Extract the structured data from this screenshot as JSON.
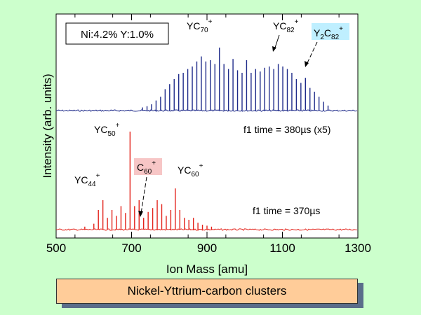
{
  "chart_data": {
    "type": "line",
    "xlabel": "Ion Mass [amu]",
    "ylabel": "Intensity (arb. units)",
    "xlim": [
      500,
      1300
    ],
    "x_ticks": [
      500,
      700,
      900,
      1100,
      1300
    ],
    "legend_box": "Ni:4.2% Y:1.0%",
    "series": [
      {
        "id": "blue",
        "color": "#1f2b8a",
        "annotation": "f1 time = 380µs (x5)",
        "peaks": [
          [
            729,
            0.05
          ],
          [
            741,
            0.07
          ],
          [
            753,
            0.1
          ],
          [
            765,
            0.16
          ],
          [
            777,
            0.22
          ],
          [
            789,
            0.34
          ],
          [
            801,
            0.42
          ],
          [
            813,
            0.5
          ],
          [
            825,
            0.58
          ],
          [
            837,
            0.6
          ],
          [
            849,
            0.66
          ],
          [
            861,
            0.7
          ],
          [
            873,
            0.78
          ],
          [
            885,
            0.86
          ],
          [
            897,
            0.78
          ],
          [
            909,
            0.8
          ],
          [
            921,
            0.74
          ],
          [
            933,
            1.0
          ],
          [
            945,
            0.74
          ],
          [
            957,
            0.66
          ],
          [
            969,
            0.82
          ],
          [
            981,
            0.64
          ],
          [
            993,
            0.6
          ],
          [
            1005,
            0.8
          ],
          [
            1017,
            0.6
          ],
          [
            1029,
            0.66
          ],
          [
            1041,
            0.62
          ],
          [
            1053,
            0.68
          ],
          [
            1065,
            0.7
          ],
          [
            1077,
            0.66
          ],
          [
            1089,
            0.74
          ],
          [
            1101,
            0.7
          ],
          [
            1113,
            0.66
          ],
          [
            1125,
            0.6
          ],
          [
            1137,
            0.5
          ],
          [
            1149,
            0.44
          ],
          [
            1161,
            0.52
          ],
          [
            1173,
            0.36
          ],
          [
            1185,
            0.3
          ],
          [
            1197,
            0.22
          ],
          [
            1209,
            0.14
          ],
          [
            1221,
            0.08
          ]
        ]
      },
      {
        "id": "red",
        "color": "#e3231b",
        "annotation": "f1 time = 370µs",
        "peaks": [
          [
            576,
            0.03
          ],
          [
            600,
            0.06
          ],
          [
            612,
            0.2
          ],
          [
            624,
            0.3
          ],
          [
            636,
            0.12
          ],
          [
            648,
            0.2
          ],
          [
            660,
            0.14
          ],
          [
            672,
            0.24
          ],
          [
            684,
            0.17
          ],
          [
            696,
            1.0
          ],
          [
            708,
            0.24
          ],
          [
            720,
            0.3
          ],
          [
            732,
            0.12
          ],
          [
            744,
            0.18
          ],
          [
            756,
            0.22
          ],
          [
            768,
            0.3
          ],
          [
            780,
            0.26
          ],
          [
            792,
            0.14
          ],
          [
            804,
            0.2
          ],
          [
            816,
            0.42
          ],
          [
            828,
            0.2
          ],
          [
            840,
            0.12
          ],
          [
            852,
            0.1
          ],
          [
            864,
            0.12
          ],
          [
            876,
            0.07
          ],
          [
            888,
            0.05
          ],
          [
            900,
            0.04
          ],
          [
            912,
            0.03
          ]
        ]
      }
    ],
    "annotations": [
      {
        "label": "YC",
        "sub": "70",
        "sup": "+"
      },
      {
        "label": "YC",
        "sub": "82",
        "sup": "+"
      },
      {
        "label": "Y",
        "mid": "2",
        "label2": "C",
        "sub": "82",
        "sup": "+"
      },
      {
        "label": "YC",
        "sub": "50",
        "sup": "+"
      },
      {
        "label": "C",
        "sub": "60",
        "sup": "+"
      },
      {
        "label": "YC",
        "sub": "44",
        "sup": "+"
      },
      {
        "label": "YC",
        "sub": "60",
        "sup": "+"
      }
    ]
  },
  "caption": "Nickel-Yttrium-carbon clusters",
  "colors": {
    "background": "#ccffcc",
    "plot_background": "#ffffff",
    "c60_highlight": "#f7c6c6",
    "y2c82_highlight": "#bfefff"
  }
}
